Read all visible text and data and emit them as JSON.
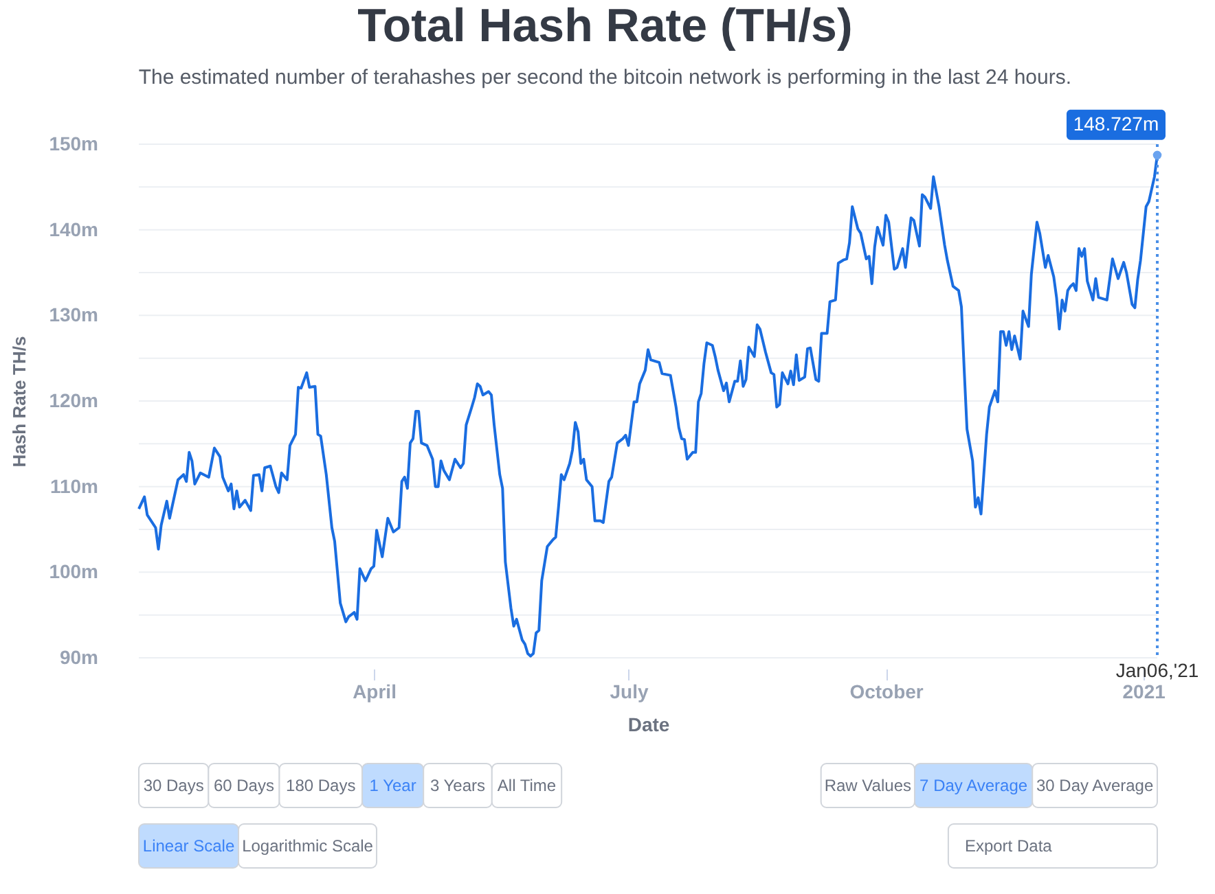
{
  "chart_data": {
    "type": "line",
    "title": "Total Hash Rate (TH/s)",
    "subtitle": "The estimated number of terahashes per second the bitcoin network is performing in the last 24 hours.",
    "xlabel": "Date",
    "ylabel": "Hash Rate TH/s",
    "x": [
      "2020-01-08",
      "2020-01-10",
      "2020-01-11",
      "2020-01-14",
      "2020-01-15",
      "2020-01-16",
      "2020-01-18",
      "2020-01-19",
      "2020-01-22",
      "2020-01-24",
      "2020-01-25",
      "2020-01-26",
      "2020-01-27",
      "2020-01-28",
      "2020-01-30",
      "2020-02-02",
      "2020-02-04",
      "2020-02-06",
      "2020-02-07",
      "2020-02-09",
      "2020-02-10",
      "2020-02-11",
      "2020-02-12",
      "2020-02-13",
      "2020-02-15",
      "2020-02-17",
      "2020-02-18",
      "2020-02-20",
      "2020-02-21",
      "2020-02-22",
      "2020-02-24",
      "2020-02-26",
      "2020-02-27",
      "2020-02-28",
      "2020-03-01",
      "2020-03-02",
      "2020-03-04",
      "2020-03-05",
      "2020-03-06",
      "2020-03-08",
      "2020-03-09",
      "2020-03-11",
      "2020-03-12",
      "2020-03-13",
      "2020-03-15",
      "2020-03-17",
      "2020-03-18",
      "2020-03-20",
      "2020-03-22",
      "2020-03-23",
      "2020-03-25",
      "2020-03-26",
      "2020-03-27",
      "2020-03-29",
      "2020-03-31",
      "2020-04-01",
      "2020-04-02",
      "2020-04-04",
      "2020-04-06",
      "2020-04-08",
      "2020-04-10",
      "2020-04-11",
      "2020-04-12",
      "2020-04-13",
      "2020-04-14",
      "2020-04-15",
      "2020-04-16",
      "2020-04-17",
      "2020-04-18",
      "2020-04-20",
      "2020-04-22",
      "2020-04-23",
      "2020-04-24",
      "2020-04-25",
      "2020-04-26",
      "2020-04-28",
      "2020-04-30",
      "2020-05-02",
      "2020-05-03",
      "2020-05-04",
      "2020-05-06",
      "2020-05-07",
      "2020-05-08",
      "2020-05-09",
      "2020-05-10",
      "2020-05-12",
      "2020-05-13",
      "2020-05-14",
      "2020-05-16",
      "2020-05-17",
      "2020-05-18",
      "2020-05-20",
      "2020-05-21",
      "2020-05-22",
      "2020-05-24",
      "2020-05-25",
      "2020-05-26",
      "2020-05-27",
      "2020-05-28",
      "2020-05-29",
      "2020-05-30",
      "2020-05-31",
      "2020-06-02",
      "2020-06-04",
      "2020-06-05",
      "2020-06-06",
      "2020-06-07",
      "2020-06-08",
      "2020-06-10",
      "2020-06-11",
      "2020-06-12",
      "2020-06-13",
      "2020-06-14",
      "2020-06-15",
      "2020-06-16",
      "2020-06-18",
      "2020-06-19",
      "2020-06-21",
      "2020-06-22",
      "2020-06-24",
      "2020-06-25",
      "2020-06-27",
      "2020-06-29",
      "2020-06-30",
      "2020-07-01",
      "2020-07-03",
      "2020-07-04",
      "2020-07-05",
      "2020-07-07",
      "2020-07-08",
      "2020-07-09",
      "2020-07-12",
      "2020-07-13",
      "2020-07-16",
      "2020-07-18",
      "2020-07-19",
      "2020-07-20",
      "2020-07-21",
      "2020-07-22",
      "2020-07-24",
      "2020-07-25",
      "2020-07-26",
      "2020-07-27",
      "2020-07-28",
      "2020-07-29",
      "2020-07-31",
      "2020-08-01",
      "2020-08-02",
      "2020-08-04",
      "2020-08-05",
      "2020-08-06",
      "2020-08-08",
      "2020-08-09",
      "2020-08-10",
      "2020-08-11",
      "2020-08-12",
      "2020-08-13",
      "2020-08-15",
      "2020-08-16",
      "2020-08-17",
      "2020-08-19",
      "2020-08-21",
      "2020-08-22",
      "2020-08-23",
      "2020-08-24",
      "2020-08-25",
      "2020-08-27",
      "2020-08-28",
      "2020-08-29",
      "2020-08-30",
      "2020-08-31",
      "2020-09-02",
      "2020-09-03",
      "2020-09-04",
      "2020-09-06",
      "2020-09-07",
      "2020-09-08",
      "2020-09-10",
      "2020-09-11",
      "2020-09-13",
      "2020-09-14",
      "2020-09-16",
      "2020-09-17",
      "2020-09-18",
      "2020-09-19",
      "2020-09-21",
      "2020-09-22",
      "2020-09-24",
      "2020-09-25",
      "2020-09-26",
      "2020-09-27",
      "2020-09-28",
      "2020-09-30",
      "2020-10-01",
      "2020-10-02",
      "2020-10-04",
      "2020-10-05",
      "2020-10-07",
      "2020-10-08",
      "2020-10-10",
      "2020-10-11",
      "2020-10-13",
      "2020-10-14",
      "2020-10-15",
      "2020-10-17",
      "2020-10-18",
      "2020-10-20",
      "2020-10-22",
      "2020-10-23",
      "2020-10-25",
      "2020-10-27",
      "2020-10-28",
      "2020-10-29",
      "2020-10-30",
      "2020-11-01",
      "2020-11-02",
      "2020-11-03",
      "2020-11-04",
      "2020-11-05",
      "2020-11-06",
      "2020-11-07",
      "2020-11-09",
      "2020-11-10",
      "2020-11-11",
      "2020-11-12",
      "2020-11-13",
      "2020-11-14",
      "2020-11-15",
      "2020-11-16",
      "2020-11-18",
      "2020-11-19",
      "2020-11-21",
      "2020-11-22",
      "2020-11-24",
      "2020-11-25",
      "2020-11-27",
      "2020-11-28",
      "2020-11-30",
      "2020-12-01",
      "2020-12-02",
      "2020-12-03",
      "2020-12-04",
      "2020-12-05",
      "2020-12-06",
      "2020-12-07",
      "2020-12-08",
      "2020-12-09",
      "2020-12-10",
      "2020-12-11",
      "2020-12-12",
      "2020-12-14",
      "2020-12-15",
      "2020-12-16",
      "2020-12-19",
      "2020-12-21",
      "2020-12-23",
      "2020-12-25",
      "2020-12-26",
      "2020-12-28",
      "2020-12-29",
      "2020-12-30",
      "2020-12-31",
      "2021-01-02",
      "2021-01-03",
      "2021-01-05",
      "2021-01-06"
    ],
    "series": [
      {
        "color": "#1a6de0",
        "values": [
          107.4,
          108.8,
          106.7,
          105.2,
          102.7,
          105.5,
          108.3,
          106.3,
          110.8,
          111.4,
          110.6,
          114.0,
          113.0,
          110.3,
          111.6,
          111.1,
          114.5,
          113.5,
          111.1,
          109.5,
          110.3,
          107.4,
          109.5,
          107.6,
          108.4,
          107.2,
          111.3,
          111.4,
          109.5,
          112.2,
          112.4,
          110.0,
          109.3,
          111.6,
          110.8,
          114.8,
          116.1,
          121.6,
          121.5,
          123.3,
          121.6,
          121.7,
          116.1,
          115.9,
          111.4,
          105.2,
          103.6,
          96.4,
          94.2,
          94.8,
          95.3,
          94.5,
          100.4,
          99.0,
          100.4,
          100.7,
          104.9,
          101.8,
          106.3,
          104.7,
          105.2,
          110.6,
          111.1,
          109.8,
          115.1,
          115.6,
          118.8,
          118.8,
          115.1,
          114.8,
          113.2,
          110.0,
          110.0,
          113.0,
          111.9,
          110.8,
          113.2,
          112.2,
          112.7,
          117.2,
          119.3,
          120.4,
          122.0,
          121.7,
          120.7,
          121.1,
          120.7,
          117.2,
          111.4,
          109.8,
          101.2,
          95.8,
          93.7,
          94.5,
          92.1,
          91.6,
          90.5,
          90.2,
          90.5,
          92.9,
          93.2,
          99.0,
          103.0,
          103.8,
          104.1,
          107.6,
          111.4,
          110.8,
          112.7,
          114.3,
          117.5,
          116.4,
          112.7,
          113.2,
          110.8,
          110.0,
          106.0,
          106.0,
          105.8,
          110.6,
          111.1,
          115.1,
          115.6,
          116.0,
          114.8,
          119.9,
          119.9,
          122.0,
          123.6,
          126.0,
          124.8,
          124.5,
          123.2,
          123.0,
          119.3,
          116.9,
          115.6,
          115.5,
          113.2,
          114.0,
          114.0,
          119.9,
          120.9,
          124.4,
          126.8,
          126.5,
          125.2,
          123.6,
          121.2,
          122.1,
          119.9,
          122.3,
          122.3,
          124.7,
          121.7,
          122.5,
          126.3,
          125.2,
          128.9,
          128.4,
          125.7,
          123.3,
          123.1,
          119.3,
          119.6,
          123.3,
          122.0,
          123.5,
          121.9,
          125.4,
          122.4,
          122.8,
          126.1,
          126.2,
          122.5,
          122.3,
          127.9,
          127.9,
          131.6,
          131.8,
          136.1,
          136.5,
          136.6,
          138.5,
          142.7,
          140.1,
          139.6,
          136.6,
          136.9,
          133.7,
          138.0,
          140.3,
          138.2,
          141.7,
          140.9,
          135.4,
          135.6,
          137.8,
          135.6,
          141.4,
          141.1,
          138.1,
          144.1,
          143.8,
          142.5,
          146.2,
          142.7,
          138.2,
          136.4,
          133.4,
          132.9,
          131.0,
          123.6,
          116.7,
          113.0,
          107.6,
          108.7,
          106.8,
          111.4,
          116.1,
          119.3,
          121.2,
          119.9,
          128.1,
          128.1,
          126.5,
          128.1,
          126.0,
          127.6,
          124.9,
          130.5,
          128.7,
          134.8,
          140.9,
          139.6,
          135.6,
          137.0,
          134.5,
          132.1,
          128.4,
          131.8,
          130.5,
          132.9,
          133.4,
          133.7,
          132.9,
          137.8,
          136.9,
          137.8,
          134.0,
          131.8,
          134.3,
          132.1,
          131.8,
          136.6,
          134.3,
          136.2,
          135.0,
          131.3,
          130.9,
          134.2,
          136.4,
          142.7,
          143.3,
          146.2,
          148.727
        ]
      }
    ],
    "xlim": [
      "2020-01-08",
      "2021-01-06"
    ],
    "xticks": [
      {
        "value": "2020-04-01",
        "label": "April"
      },
      {
        "value": "2020-07-01",
        "label": "July"
      },
      {
        "value": "2020-10-01",
        "label": "October"
      },
      {
        "value": "2021-01-01",
        "label": "2021"
      }
    ],
    "ylim": [
      90,
      150
    ],
    "yticks": [
      {
        "value": 90,
        "label": "90m"
      },
      {
        "value": 95,
        "label": null
      },
      {
        "value": 100,
        "label": "100m"
      },
      {
        "value": 105,
        "label": null
      },
      {
        "value": 110,
        "label": "110m"
      },
      {
        "value": 115,
        "label": null
      },
      {
        "value": 120,
        "label": "120m"
      },
      {
        "value": 125,
        "label": null
      },
      {
        "value": 130,
        "label": "130m"
      },
      {
        "value": 135,
        "label": null
      },
      {
        "value": 140,
        "label": "140m"
      },
      {
        "value": 145,
        "label": null
      },
      {
        "value": 150,
        "label": "150m"
      }
    ],
    "grid": "y",
    "line_style": "solid",
    "ref_lines": [
      {
        "axis": "x",
        "value": "2021-01-06",
        "label": "Jan06,'21",
        "color": "#4a8fe7",
        "line_style": "dotted"
      }
    ],
    "annotations": [
      {
        "text": "148.727m",
        "x": "2021-01-06",
        "y": 148.727
      },
      "30 Days",
      "60 Days",
      "180 Days",
      "1 Year",
      "3 Years",
      "All Time",
      "Raw Values",
      "7 Day Average",
      "30 Day Average",
      "Linear Scale",
      "Logarithmic Scale",
      "Export Data"
    ]
  }
}
